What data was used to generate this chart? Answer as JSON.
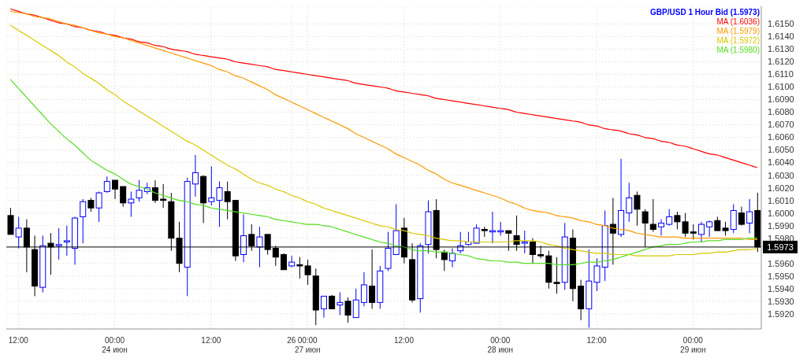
{
  "chart_data": {
    "type": "candlestick",
    "legend": "top right",
    "grid": true,
    "marker": "none",
    "line_style": "solid",
    "categories": [
      null,
      "12:00",
      null,
      null,
      null,
      null,
      null,
      null,
      null,
      null,
      null,
      null,
      null,
      "00:00\n24 июн",
      null,
      null,
      null,
      null,
      null,
      null,
      null,
      null,
      null,
      null,
      null,
      "12:00",
      null,
      null,
      null,
      null,
      null,
      null,
      null,
      null,
      null,
      "26",
      null,
      "00:00\n27 июн",
      null,
      null,
      null,
      null,
      null,
      null,
      null,
      null,
      null,
      null,
      null,
      "12:00",
      null,
      null,
      null,
      null,
      null,
      null,
      null,
      null,
      null,
      null,
      null,
      "00:00\n28 июн",
      null,
      null,
      null,
      null,
      null,
      null,
      null,
      null,
      null,
      null,
      null,
      "12:00",
      null,
      null,
      null,
      null,
      null,
      null,
      null,
      null,
      null,
      null,
      null,
      "00:00\n29 июн",
      null,
      null,
      null,
      null,
      null,
      null,
      null,
      null
    ],
    "ylim": [
      1.5908,
      1.6164
    ],
    "yticks": [
      {
        "value": 1.592,
        "label": "1.5920"
      },
      {
        "value": 1.593,
        "label": "1.5930"
      },
      {
        "value": 1.594,
        "label": "1.5940"
      },
      {
        "value": 1.595,
        "label": "1.5950"
      },
      {
        "value": 1.596,
        "label": "1.5960"
      },
      {
        "value": 1.597,
        "label": null
      },
      {
        "value": 1.598,
        "label": "1.5980"
      },
      {
        "value": 1.599,
        "label": "1.5990"
      },
      {
        "value": 1.6,
        "label": "1.6000"
      },
      {
        "value": 1.601,
        "label": "1.6010"
      },
      {
        "value": 1.602,
        "label": "1.6020"
      },
      {
        "value": 1.603,
        "label": "1.6030"
      },
      {
        "value": 1.604,
        "label": "1.6040"
      },
      {
        "value": 1.605,
        "label": "1.6050"
      },
      {
        "value": 1.606,
        "label": "1.6060"
      },
      {
        "value": 1.607,
        "label": "1.6070"
      },
      {
        "value": 1.608,
        "label": "1.6080"
      },
      {
        "value": 1.609,
        "label": "1.6090"
      },
      {
        "value": 1.61,
        "label": "1.6100"
      },
      {
        "value": 1.611,
        "label": "1.6110"
      },
      {
        "value": 1.612,
        "label": "1.6120"
      },
      {
        "value": 1.613,
        "label": "1.6130"
      },
      {
        "value": 1.614,
        "label": "1.6140"
      },
      {
        "value": 1.615,
        "label": "1.6150"
      }
    ],
    "ref_lines": [
      {
        "axis": "y",
        "value": 1.5973,
        "label": "1.5973",
        "color": "#000000"
      }
    ],
    "series": [
      {
        "type": "candlestick",
        "name": "GBP/USD 1 Hour Bid (1.5973)",
        "color": "#0000ff",
        "colors": [
          "#000000",
          "#0000ff",
          "#000000",
          "#000000",
          "#0000ff",
          "#000000",
          "#0000ff",
          "#0000ff",
          "#0000ff",
          "#0000ff",
          "#000000",
          "#0000ff",
          "#0000ff",
          "#000000",
          "#000000",
          "#0000ff",
          "#0000ff",
          "#0000ff",
          "#000000",
          "#000000",
          "#000000",
          "#000000",
          "#0000ff",
          "#0000ff",
          "#000000",
          "#0000ff",
          "#0000ff",
          "#000000",
          "#000000",
          "#0000ff",
          "#000000",
          "#0000ff",
          "#000000",
          "#000000",
          "#000000",
          "#0000ff",
          "#000000",
          "#000000",
          "#000000",
          "#0000ff",
          "#000000",
          "#0000ff",
          "#000000",
          "#0000ff",
          "#0000ff",
          "#000000",
          "#0000ff",
          "#0000ff",
          "#0000ff",
          "#000000",
          "#000000",
          "#0000ff",
          "#0000ff",
          "#000000",
          "#000000",
          "#0000ff",
          "#0000ff",
          "#0000ff",
          "#0000ff",
          "#000000",
          "#0000ff",
          "#0000ff",
          "#000000",
          "#000000",
          "#0000ff",
          "#000000",
          "#000000",
          "#000000",
          "#000000",
          "#0000ff",
          "#000000",
          "#000000",
          "#0000ff",
          "#0000ff",
          "#0000ff",
          "#000000",
          "#0000ff",
          "#0000ff",
          "#000000",
          "#000000",
          "#000000",
          "#0000ff",
          "#0000ff",
          "#000000",
          "#000000",
          "#000000",
          "#0000ff",
          "#0000ff",
          "#000000",
          "#000000",
          "#0000ff",
          "#000000",
          "#0000ff",
          "#000000"
        ],
        "ohlc": [
          [
            1.5998,
            1.6004,
            1.5983,
            1.5983
          ],
          [
            1.5981,
            1.5997,
            1.5972,
            1.5988
          ],
          [
            1.5988,
            1.5995,
            1.5953,
            1.5973
          ],
          [
            1.5971,
            1.5982,
            1.5934,
            1.5942
          ],
          [
            1.5941,
            1.5982,
            1.5937,
            1.5974
          ],
          [
            1.5976,
            1.5984,
            1.5951,
            1.5973
          ],
          [
            1.5974,
            1.5988,
            1.5963,
            1.5975
          ],
          [
            1.5977,
            1.599,
            1.5966,
            1.5978
          ],
          [
            1.5972,
            1.5997,
            1.5959,
            1.5996
          ],
          [
            1.5997,
            1.6011,
            1.5976,
            1.6009
          ],
          [
            1.601,
            1.6012,
            1.6001,
            1.6004
          ],
          [
            1.6004,
            1.6017,
            1.5993,
            1.6016
          ],
          [
            1.6017,
            1.6029,
            1.6016,
            1.6025
          ],
          [
            1.6026,
            1.6026,
            1.6011,
            1.6019
          ],
          [
            1.6021,
            1.6021,
            1.6005,
            1.6008
          ],
          [
            1.6008,
            1.6017,
            1.5997,
            1.6011
          ],
          [
            1.6012,
            1.6026,
            1.6009,
            1.6018
          ],
          [
            1.6017,
            1.6024,
            1.6015,
            1.602
          ],
          [
            1.602,
            1.6026,
            1.6008,
            1.601
          ],
          [
            1.6011,
            1.6023,
            1.6004,
            1.601
          ],
          [
            1.6009,
            1.6016,
            1.597,
            1.598
          ],
          [
            1.598,
            1.5993,
            1.5953,
            1.596
          ],
          [
            1.5957,
            1.6028,
            1.5934,
            1.6025
          ],
          [
            1.6023,
            1.6046,
            1.6013,
            1.6032
          ],
          [
            1.6029,
            1.603,
            1.5992,
            1.6008
          ],
          [
            1.6009,
            1.6037,
            1.6006,
            1.6012
          ],
          [
            1.601,
            1.6025,
            1.5989,
            1.602
          ],
          [
            1.6017,
            1.6025,
            1.5995,
            1.6009
          ],
          [
            1.601,
            1.601,
            1.5962,
            1.5966
          ],
          [
            1.5967,
            1.5999,
            1.5961,
            1.5982
          ],
          [
            1.5983,
            1.5991,
            1.597,
            1.5974
          ],
          [
            1.5973,
            1.5989,
            1.5957,
            1.5981
          ],
          [
            1.5983,
            1.5983,
            1.5967,
            1.5971
          ],
          [
            1.5972,
            1.5974,
            1.5958,
            1.5965
          ],
          [
            1.5967,
            1.5968,
            1.5955,
            1.5955
          ],
          [
            1.5958,
            1.5966,
            1.5957,
            1.5961
          ],
          [
            1.5959,
            1.5965,
            1.5948,
            1.5958
          ],
          [
            1.5958,
            1.5963,
            1.5943,
            1.5951
          ],
          [
            1.595,
            1.5956,
            1.5911,
            1.5923
          ],
          [
            1.5924,
            1.5934,
            1.5917,
            1.5934
          ],
          [
            1.5934,
            1.5935,
            1.5924,
            1.5924
          ],
          [
            1.5927,
            1.5937,
            1.5919,
            1.5929
          ],
          [
            1.593,
            1.5933,
            1.5913,
            1.5919
          ],
          [
            1.5917,
            1.594,
            1.5917,
            1.5931
          ],
          [
            1.5929,
            1.5953,
            1.5926,
            1.5943
          ],
          [
            1.5942,
            1.5971,
            1.5924,
            1.5929
          ],
          [
            1.5929,
            1.5958,
            1.5924,
            1.5954
          ],
          [
            1.5956,
            1.5985,
            1.5954,
            1.5972
          ],
          [
            1.5967,
            1.6007,
            1.5967,
            1.5986
          ],
          [
            1.5988,
            1.5996,
            1.596,
            1.5965
          ],
          [
            1.5963,
            1.5976,
            1.5929,
            1.5931
          ],
          [
            1.5932,
            1.5976,
            1.5921,
            1.5974
          ],
          [
            1.5975,
            1.601,
            1.5968,
            1.6001
          ],
          [
            1.6002,
            1.6011,
            1.5964,
            1.5971
          ],
          [
            1.5969,
            1.5971,
            1.5954,
            1.5963
          ],
          [
            1.5962,
            1.5972,
            1.5957,
            1.5968
          ],
          [
            1.597,
            1.5985,
            1.5968,
            1.5974
          ],
          [
            1.5975,
            1.5985,
            1.5974,
            1.5977
          ],
          [
            1.5976,
            1.5991,
            1.5976,
            1.5988
          ],
          [
            1.5987,
            1.5989,
            1.5981,
            1.5986
          ],
          [
            1.5985,
            1.6001,
            1.5976,
            1.5986
          ],
          [
            1.5985,
            1.5993,
            1.5982,
            1.5986
          ],
          [
            1.5986,
            1.5986,
            1.597,
            1.5984
          ],
          [
            1.5982,
            1.5998,
            1.597,
            1.5975
          ],
          [
            1.5976,
            1.5986,
            1.5968,
            1.5977
          ],
          [
            1.5977,
            1.598,
            1.596,
            1.5967
          ],
          [
            1.5967,
            1.5974,
            1.5964,
            1.5966
          ],
          [
            1.5966,
            1.597,
            1.594,
            1.5945
          ],
          [
            1.5945,
            1.5965,
            1.5936,
            1.5944
          ],
          [
            1.5945,
            1.5992,
            1.5939,
            1.5981
          ],
          [
            1.598,
            1.5987,
            1.593,
            1.594
          ],
          [
            1.5942,
            1.5947,
            1.5915,
            1.5924
          ],
          [
            1.5924,
            1.5971,
            1.5909,
            1.5946
          ],
          [
            1.5945,
            1.5964,
            1.5938,
            1.5958
          ],
          [
            1.5957,
            1.6002,
            1.5946,
            1.599
          ],
          [
            1.5991,
            1.6012,
            1.5959,
            1.5984
          ],
          [
            1.5983,
            1.6043,
            1.5981,
            1.6002
          ],
          [
            1.6,
            1.6024,
            1.5993,
            1.6012
          ],
          [
            1.6014,
            1.6017,
            1.599,
            1.6003
          ],
          [
            1.6001,
            1.6003,
            1.5973,
            1.5992
          ],
          [
            1.5991,
            1.6011,
            1.5985,
            1.5987
          ],
          [
            1.5989,
            1.5995,
            1.5982,
            1.5992
          ],
          [
            1.5991,
            1.6003,
            1.599,
            1.5997
          ],
          [
            1.5998,
            1.6001,
            1.5987,
            1.5993
          ],
          [
            1.5993,
            1.6,
            1.5981,
            1.5984
          ],
          [
            1.5985,
            1.5991,
            1.5979,
            1.5984
          ],
          [
            1.5983,
            1.5993,
            1.5977,
            1.5991
          ],
          [
            1.5989,
            1.5994,
            1.5981,
            1.5993
          ],
          [
            1.5994,
            1.5997,
            1.5986,
            1.5986
          ],
          [
            1.5988,
            1.5993,
            1.5982,
            1.5986
          ],
          [
            1.5987,
            1.6007,
            1.5984,
            1.6002
          ],
          [
            1.6,
            1.6005,
            1.599,
            1.5991
          ],
          [
            1.5992,
            1.6011,
            1.5984,
            1.6001
          ],
          [
            1.6002,
            1.6016,
            1.5969,
            1.5973
          ]
        ]
      },
      {
        "type": "line",
        "name": "MA (1.6036)",
        "color": "#ff0000",
        "values": [
          1.6162,
          1.616,
          1.6158,
          1.6157,
          1.6155,
          1.6153,
          1.6151,
          1.615,
          1.6148,
          1.6147,
          1.6145,
          1.6144,
          1.6142,
          1.6141,
          1.6139,
          1.6138,
          1.6136,
          1.6135,
          1.6133,
          1.6132,
          1.613,
          1.6129,
          1.6128,
          1.6126,
          1.6125,
          1.6124,
          1.6123,
          1.6122,
          1.612,
          1.6119,
          1.6118,
          1.6117,
          1.6116,
          1.6114,
          1.6113,
          1.6112,
          1.6111,
          1.611,
          1.6109,
          1.6108,
          1.6107,
          1.6106,
          1.6105,
          1.6103,
          1.6102,
          1.6101,
          1.61,
          1.6099,
          1.6097,
          1.6096,
          1.6095,
          1.6094,
          1.6093,
          1.6091,
          1.609,
          1.6089,
          1.6088,
          1.6087,
          1.6086,
          1.6085,
          1.6084,
          1.6083,
          1.6082,
          1.608,
          1.6079,
          1.6078,
          1.6077,
          1.6076,
          1.6075,
          1.6074,
          1.6073,
          1.6072,
          1.607,
          1.6069,
          1.6067,
          1.6066,
          1.6065,
          1.6063,
          1.6062,
          1.606,
          1.6059,
          1.6057,
          1.6056,
          1.6054,
          1.6053,
          1.6051,
          1.6049,
          1.6047,
          1.6046,
          1.6044,
          1.6042,
          1.604,
          1.6038,
          1.6036
        ]
      },
      {
        "type": "line",
        "name": "MA (1.5979)",
        "color": "#ff9900",
        "values": [
          1.616,
          1.6159,
          1.6158,
          1.6156,
          1.6155,
          1.6154,
          1.6152,
          1.615,
          1.6149,
          1.6147,
          1.6145,
          1.6143,
          1.6142,
          1.614,
          1.6139,
          1.6137,
          1.6135,
          1.6133,
          1.6131,
          1.6129,
          1.6127,
          1.6125,
          1.6123,
          1.6121,
          1.6119,
          1.6117,
          1.6114,
          1.6112,
          1.6109,
          1.6107,
          1.6104,
          1.6101,
          1.6098,
          1.6094,
          1.6091,
          1.6088,
          1.6085,
          1.6082,
          1.6079,
          1.6076,
          1.6073,
          1.607,
          1.6067,
          1.6063,
          1.606,
          1.6057,
          1.6054,
          1.6051,
          1.6047,
          1.6044,
          1.6041,
          1.6038,
          1.6034,
          1.6031,
          1.6027,
          1.6024,
          1.6022,
          1.602,
          1.6018,
          1.6016,
          1.6014,
          1.6012,
          1.6009,
          1.6007,
          1.6004,
          1.6002,
          1.6001,
          1.6,
          1.5998,
          1.5997,
          1.5996,
          1.5994,
          1.5993,
          1.5991,
          1.599,
          1.5988,
          1.5987,
          1.5986,
          1.5984,
          1.5983,
          1.5982,
          1.5981,
          1.5981,
          1.5981,
          1.598,
          1.598,
          1.598,
          1.598,
          1.598,
          1.598,
          1.598,
          1.598,
          1.5979,
          1.5979
        ]
      },
      {
        "type": "line",
        "name": "MA (1.5972)",
        "color": "#d8c800",
        "values": [
          1.6149,
          1.6145,
          1.6141,
          1.6137,
          1.6133,
          1.6129,
          1.6125,
          1.612,
          1.6116,
          1.6111,
          1.6107,
          1.6103,
          1.6098,
          1.6094,
          1.6089,
          1.6085,
          1.6081,
          1.6077,
          1.6073,
          1.6069,
          1.6065,
          1.6061,
          1.6057,
          1.6054,
          1.605,
          1.6046,
          1.6042,
          1.6038,
          1.6035,
          1.6031,
          1.6027,
          1.6024,
          1.6022,
          1.6019,
          1.6017,
          1.6014,
          1.6012,
          1.6009,
          1.6007,
          1.6004,
          1.6002,
          1.6,
          1.5998,
          1.5996,
          1.5994,
          1.5992,
          1.599,
          1.5989,
          1.5987,
          1.5986,
          1.5984,
          1.5983,
          1.5982,
          1.598,
          1.5979,
          1.5978,
          1.5978,
          1.5977,
          1.5977,
          1.5977,
          1.5977,
          1.5977,
          1.5977,
          1.5978,
          1.5978,
          1.5978,
          1.5977,
          1.5975,
          1.5974,
          1.5972,
          1.5971,
          1.597,
          1.5969,
          1.5968,
          1.5968,
          1.5967,
          1.5967,
          1.5967,
          1.5966,
          1.5966,
          1.5966,
          1.5966,
          1.5966,
          1.5967,
          1.5967,
          1.5967,
          1.5968,
          1.5968,
          1.5969,
          1.5969,
          1.597,
          1.5971,
          1.5971,
          1.5972
        ]
      },
      {
        "type": "line",
        "name": "MA (1.5980)",
        "color": "#55dd22",
        "values": [
          1.6106,
          1.6099,
          1.6092,
          1.6085,
          1.6078,
          1.6071,
          1.6065,
          1.6059,
          1.6054,
          1.6048,
          1.6042,
          1.6038,
          1.6034,
          1.6031,
          1.6027,
          1.6023,
          1.6021,
          1.6019,
          1.6016,
          1.6014,
          1.6012,
          1.601,
          1.6009,
          1.6007,
          1.6006,
          1.6004,
          1.6003,
          1.6002,
          1.6001,
          1.6,
          1.5999,
          1.5998,
          1.5997,
          1.5995,
          1.5994,
          1.5993,
          1.5992,
          1.5991,
          1.5991,
          1.599,
          1.5989,
          1.5987,
          1.5985,
          1.5983,
          1.5981,
          1.5979,
          1.5977,
          1.5976,
          1.5974,
          1.5973,
          1.5971,
          1.597,
          1.597,
          1.5969,
          1.5969,
          1.5968,
          1.5967,
          1.5966,
          1.5964,
          1.5963,
          1.5962,
          1.5962,
          1.5961,
          1.5961,
          1.596,
          1.596,
          1.596,
          1.596,
          1.5959,
          1.5959,
          1.5959,
          1.596,
          1.5961,
          1.5961,
          1.5962,
          1.5963,
          1.5965,
          1.5967,
          1.5969,
          1.5971,
          1.5973,
          1.5974,
          1.5975,
          1.5975,
          1.5976,
          1.5977,
          1.5977,
          1.5978,
          1.5978,
          1.5979,
          1.5979,
          1.5979,
          1.598,
          1.598
        ]
      }
    ]
  }
}
